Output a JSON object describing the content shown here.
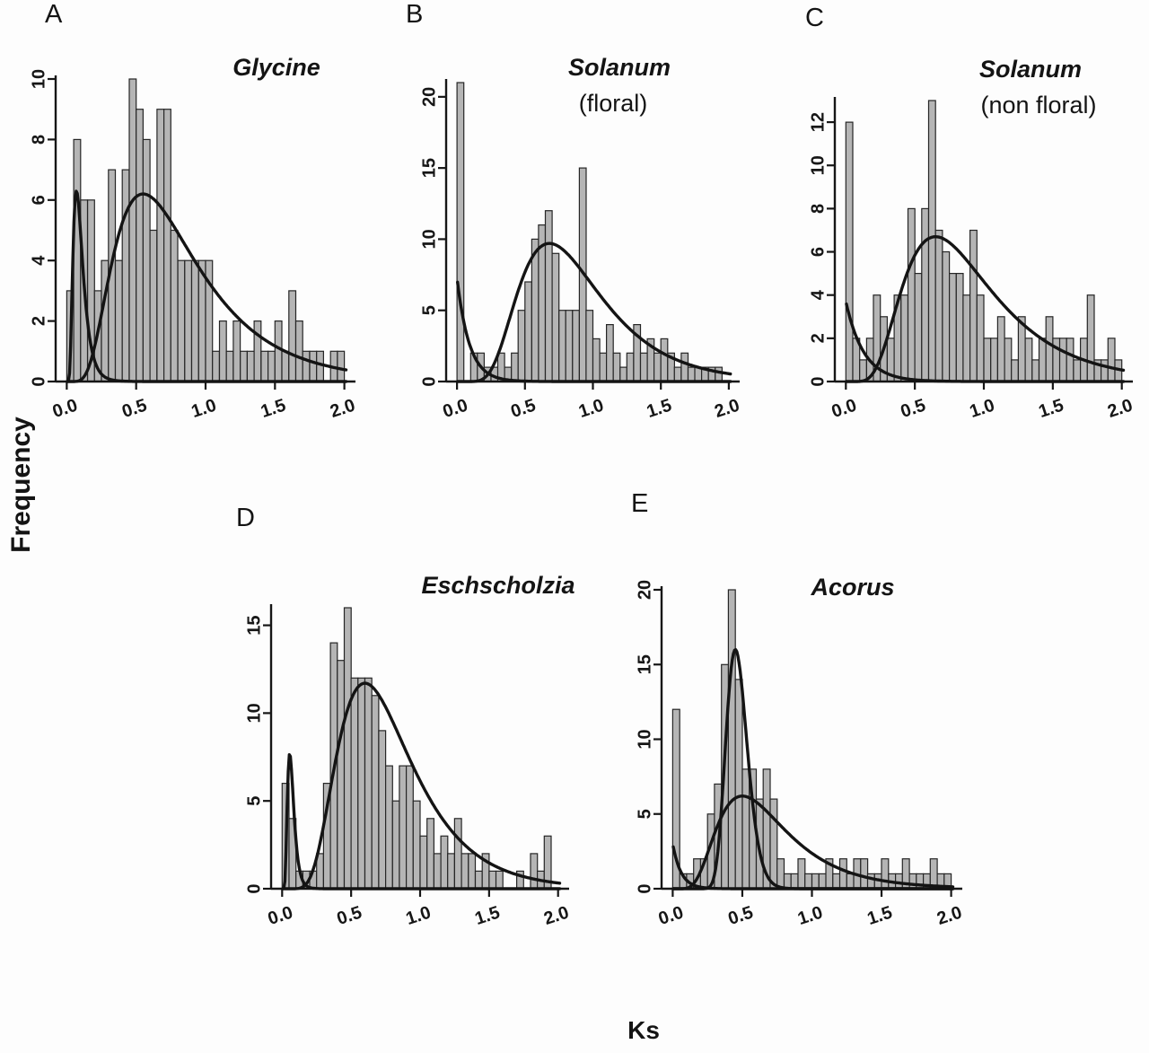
{
  "figure": {
    "ylabel": "Frequency",
    "xlabel": "Ks"
  },
  "colors": {
    "bar_fill": "#b5b5b5",
    "bar_stroke": "#262626",
    "curve": "#141414",
    "axis": "#161616",
    "text": "#141414"
  },
  "chart_data": [
    {
      "type": "bar",
      "panel": "A",
      "title": "Glycine",
      "subtitle": "",
      "bin_start": 0,
      "bin_width": 0.05,
      "values": [
        3,
        8,
        6,
        6,
        3,
        4,
        7,
        4,
        7,
        10,
        9,
        8,
        5,
        9,
        9,
        5,
        4,
        4,
        4,
        4,
        4,
        1,
        2,
        1,
        2,
        1,
        1,
        2,
        1,
        1,
        2,
        1,
        3,
        2,
        1,
        1,
        1,
        0,
        1,
        1
      ],
      "xlim": [
        0,
        2
      ],
      "ylim": [
        0,
        10
      ],
      "xticks": [
        0,
        0.5,
        1,
        1.5,
        2
      ],
      "xtick_labels": [
        "0.0",
        "0.5",
        "1.0",
        "1.5",
        "2.0"
      ],
      "yticks": [
        0,
        2,
        4,
        6,
        8,
        10
      ],
      "curves": [
        {
          "type": "lognormal",
          "peak_x": 0.07,
          "peak_y": 6.3,
          "sigma": 0.5
        },
        {
          "type": "lognormal",
          "peak_x": 0.55,
          "peak_y": 6.2,
          "sigma": 0.55
        }
      ]
    },
    {
      "type": "bar",
      "panel": "B",
      "title": "Solanum",
      "subtitle": "(floral)",
      "bin_start": 0,
      "bin_width": 0.05,
      "values": [
        21,
        0,
        2,
        2,
        1,
        1,
        2,
        1,
        2,
        5,
        7,
        10,
        11,
        12,
        9,
        5,
        5,
        5,
        15,
        5,
        3,
        2,
        4,
        2,
        1,
        2,
        4,
        2,
        3,
        2,
        3,
        2,
        1,
        2,
        1,
        1,
        1,
        1,
        1,
        0
      ],
      "xlim": [
        0,
        2
      ],
      "ylim": [
        0,
        21
      ],
      "xticks": [
        0,
        0.5,
        1,
        1.5,
        2
      ],
      "xtick_labels": [
        "0.0",
        "0.5",
        "1.0",
        "1.5",
        "2.0"
      ],
      "yticks": [
        0,
        5,
        10,
        15,
        20
      ],
      "curves": [
        {
          "type": "decay",
          "y0": 7.3,
          "tau": 0.09
        },
        {
          "type": "lognormal",
          "peak_x": 0.68,
          "peak_y": 9.7,
          "sigma": 0.45
        }
      ]
    },
    {
      "type": "bar",
      "panel": "C",
      "title": "Solanum",
      "subtitle": "(non floral)",
      "bin_start": 0,
      "bin_width": 0.05,
      "values": [
        12,
        2,
        1,
        2,
        4,
        3,
        2,
        4,
        4,
        8,
        5,
        8,
        13,
        7,
        6,
        5,
        5,
        4,
        7,
        4,
        2,
        2,
        3,
        2,
        1,
        3,
        2,
        1,
        2,
        3,
        2,
        2,
        2,
        1,
        2,
        4,
        1,
        1,
        2,
        1
      ],
      "xlim": [
        0,
        2
      ],
      "ylim": [
        0,
        13
      ],
      "xticks": [
        0,
        0.5,
        1,
        1.5,
        2
      ],
      "xtick_labels": [
        "0.0",
        "0.5",
        "1.0",
        "1.5",
        "2.0"
      ],
      "yticks": [
        0,
        2,
        4,
        6,
        8,
        10,
        12
      ],
      "curves": [
        {
          "type": "decay",
          "y0": 3.7,
          "tau": 0.13
        },
        {
          "type": "lognormal",
          "peak_x": 0.65,
          "peak_y": 6.7,
          "sigma": 0.5
        }
      ]
    },
    {
      "type": "bar",
      "panel": "D",
      "title": "Eschscholzia",
      "subtitle": "",
      "bin_start": 0,
      "bin_width": 0.05,
      "values": [
        6,
        4,
        1,
        1,
        1,
        2,
        6,
        14,
        13,
        16,
        12,
        12,
        12,
        11,
        9,
        7,
        5,
        7,
        7,
        5,
        3,
        4,
        2,
        3,
        2,
        4,
        2,
        2,
        1,
        2,
        1,
        1,
        0,
        0,
        1,
        0,
        2,
        1,
        3,
        0
      ],
      "xlim": [
        0,
        2
      ],
      "ylim": [
        0,
        16
      ],
      "xticks": [
        0,
        0.5,
        1,
        1.5,
        2
      ],
      "xtick_labels": [
        "0.0",
        "0.5",
        "1.0",
        "1.5",
        "2.0"
      ],
      "yticks": [
        0,
        5,
        10,
        15
      ],
      "curves": [
        {
          "type": "lognormal",
          "peak_x": 0.055,
          "peak_y": 7.7,
          "sigma": 0.42
        },
        {
          "type": "lognormal",
          "peak_x": 0.6,
          "peak_y": 11.7,
          "sigma": 0.45
        }
      ]
    },
    {
      "type": "bar",
      "panel": "E",
      "title": "Acorus",
      "subtitle": "",
      "bin_start": 0,
      "bin_width": 0.05,
      "values": [
        12,
        1,
        1,
        2,
        2,
        5,
        7,
        15,
        20,
        14,
        8,
        8,
        6,
        8,
        6,
        2,
        1,
        1,
        2,
        1,
        1,
        1,
        2,
        1,
        2,
        1,
        2,
        2,
        1,
        1,
        2,
        1,
        1,
        2,
        1,
        1,
        1,
        2,
        1,
        1
      ],
      "xlim": [
        0,
        2
      ],
      "ylim": [
        0,
        20
      ],
      "xticks": [
        0,
        0.5,
        1,
        1.5,
        2
      ],
      "xtick_labels": [
        "0.0",
        "0.5",
        "1.0",
        "1.5",
        "2.0"
      ],
      "yticks": [
        0,
        5,
        10,
        15,
        20
      ],
      "curves": [
        {
          "type": "decay",
          "y0": 3,
          "tau": 0.06
        },
        {
          "type": "lognormal",
          "peak_x": 0.45,
          "peak_y": 16,
          "sigma": 0.17
        },
        {
          "type": "lognormal",
          "peak_x": 0.5,
          "peak_y": 6.2,
          "sigma": 0.5
        }
      ]
    }
  ]
}
